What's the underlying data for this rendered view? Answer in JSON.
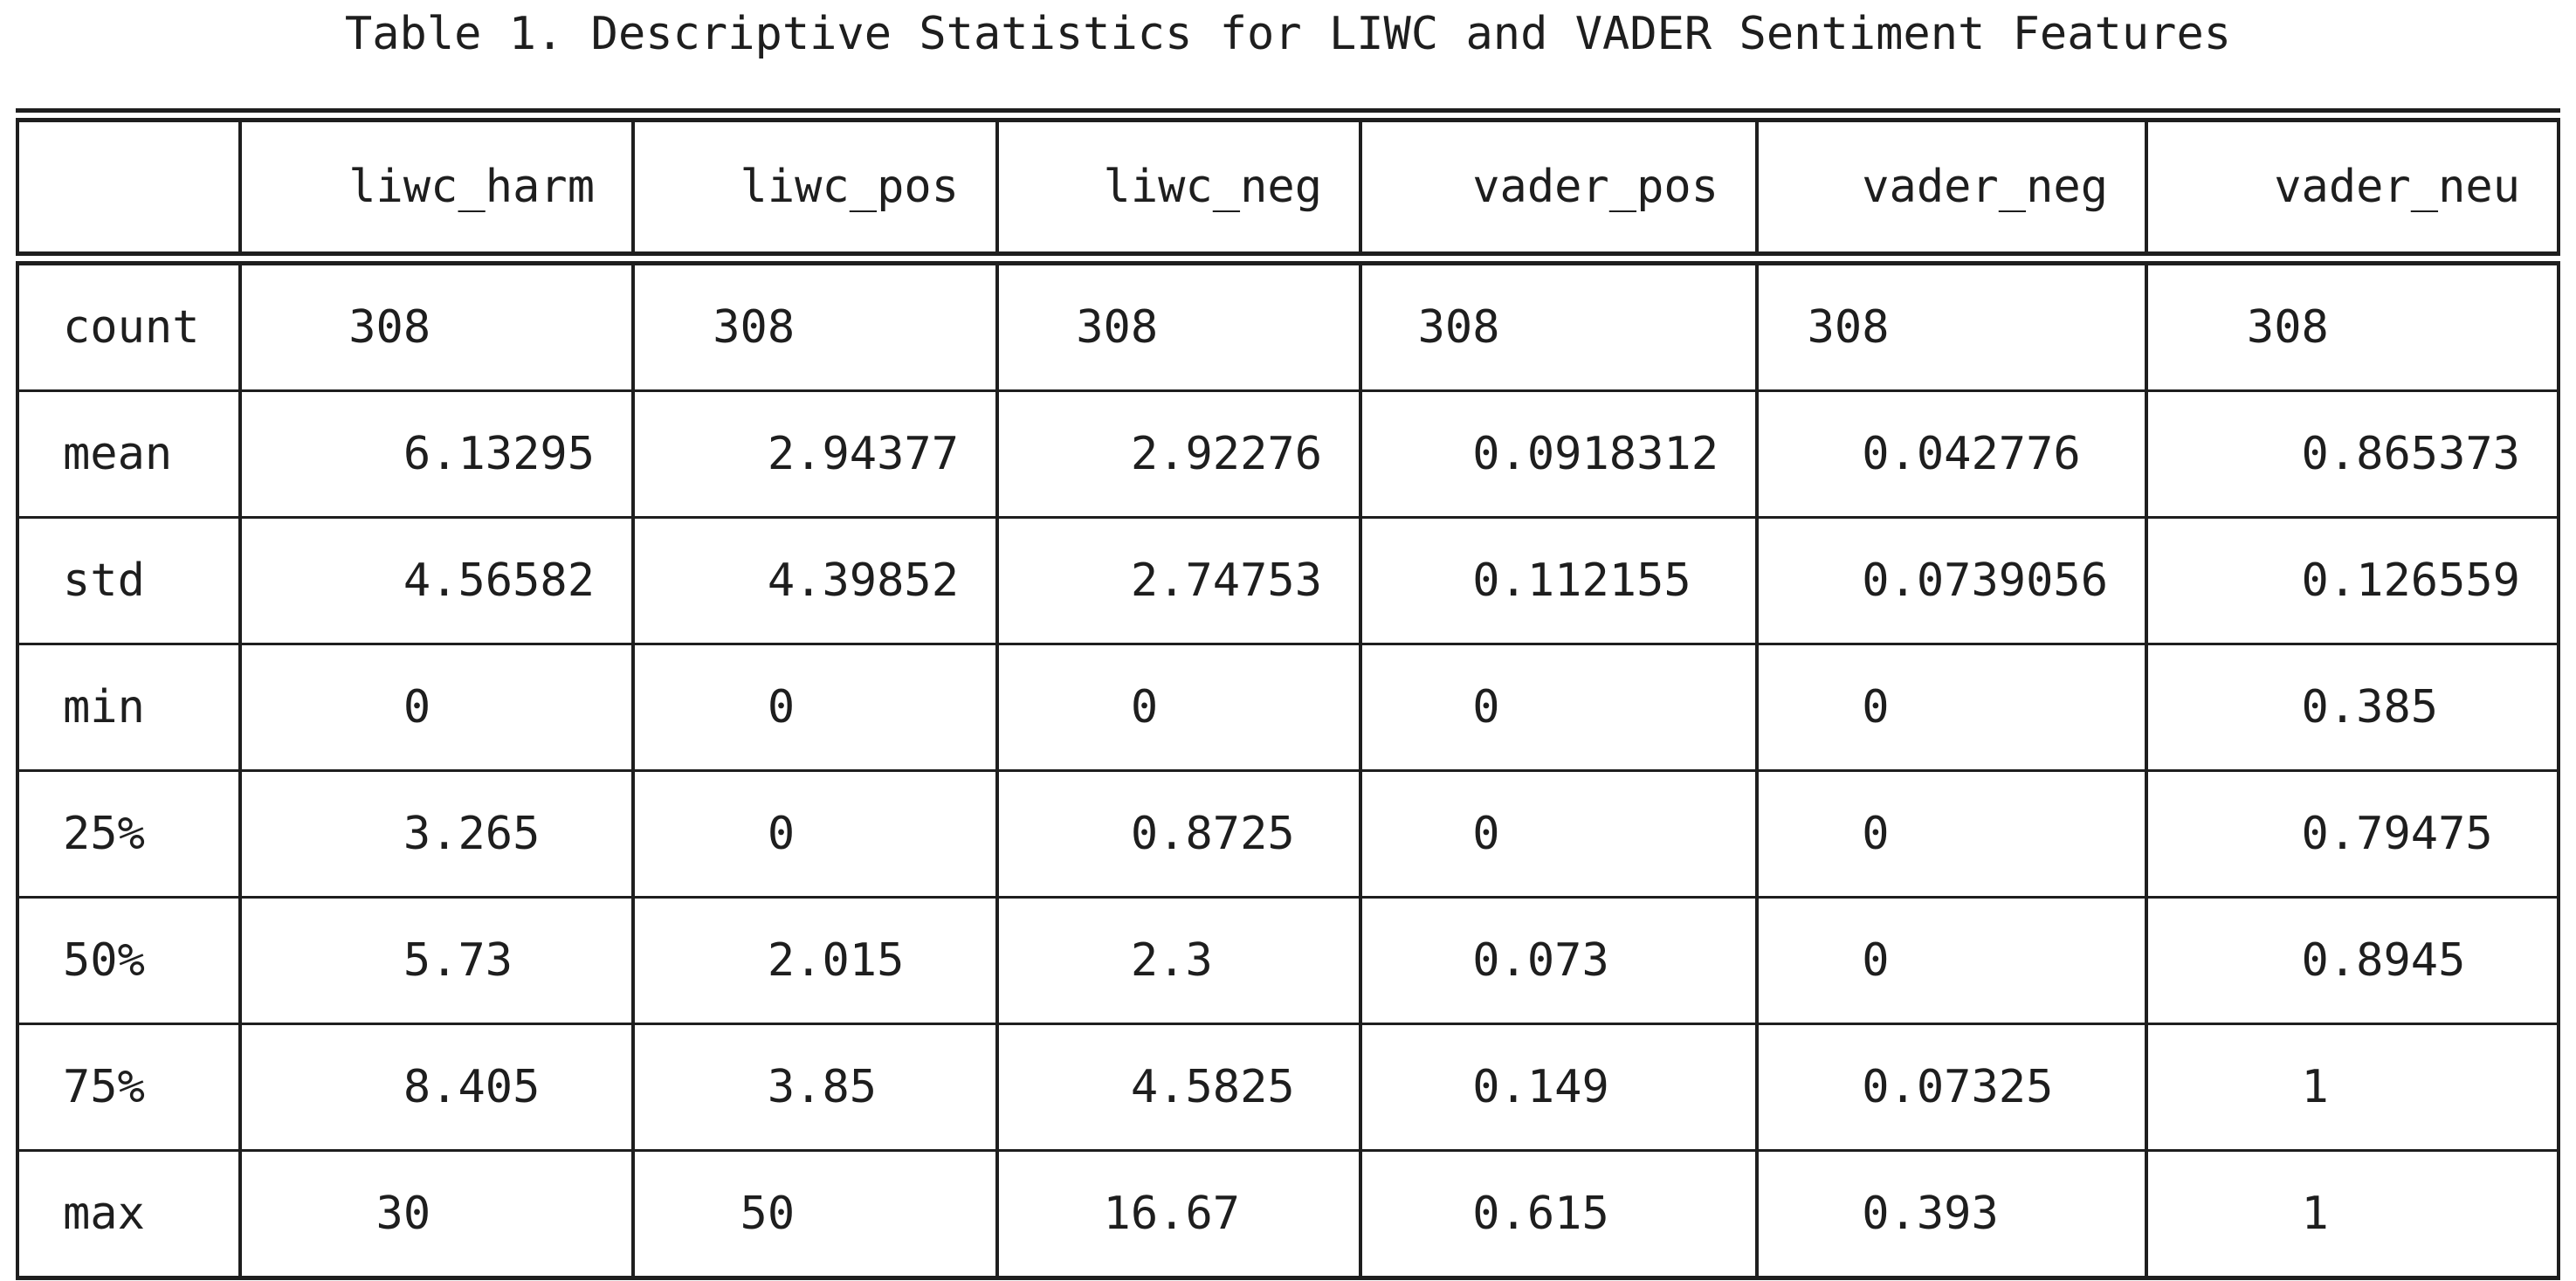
{
  "chart_data": {
    "type": "table",
    "title": "Table 1. Descriptive Statistics for LIWC and VADER Sentiment Features",
    "columns": [
      "",
      "liwc_harm",
      "liwc_pos",
      "liwc_neg",
      "vader_pos",
      "vader_neg",
      "vader_neu"
    ],
    "row_labels": [
      "count",
      "mean",
      "std",
      "min",
      "25%",
      "50%",
      "75%",
      "max"
    ],
    "rows": [
      [
        "308",
        "308",
        "308",
        "308",
        "308",
        "308"
      ],
      [
        "6.13295",
        "2.94377",
        "2.92276",
        "0.0918312",
        "0.042776",
        "0.865373"
      ],
      [
        "4.56582",
        "4.39852",
        "2.74753",
        "0.112155",
        "0.0739056",
        "0.126559"
      ],
      [
        "0",
        "0",
        "0",
        "0",
        "0",
        "0.385"
      ],
      [
        "3.265",
        "0",
        "0.8725",
        "0",
        "0",
        "0.79475"
      ],
      [
        "5.73",
        "2.015",
        "2.3",
        "0.073",
        "0",
        "0.8945"
      ],
      [
        "8.405",
        "3.85",
        "4.5825",
        "0.149",
        "0.07325",
        "1"
      ],
      [
        "30",
        "50",
        "16.67",
        "0.615",
        "0.393",
        "1"
      ]
    ],
    "layout": {
      "grid": true,
      "number_alignment": "decimal",
      "header_alignment": "right",
      "row_label_alignment": "left"
    }
  },
  "style": {
    "text_color": "#1e1e1e",
    "border_color": "#1e1e1e",
    "background_color": "#ffffff"
  }
}
